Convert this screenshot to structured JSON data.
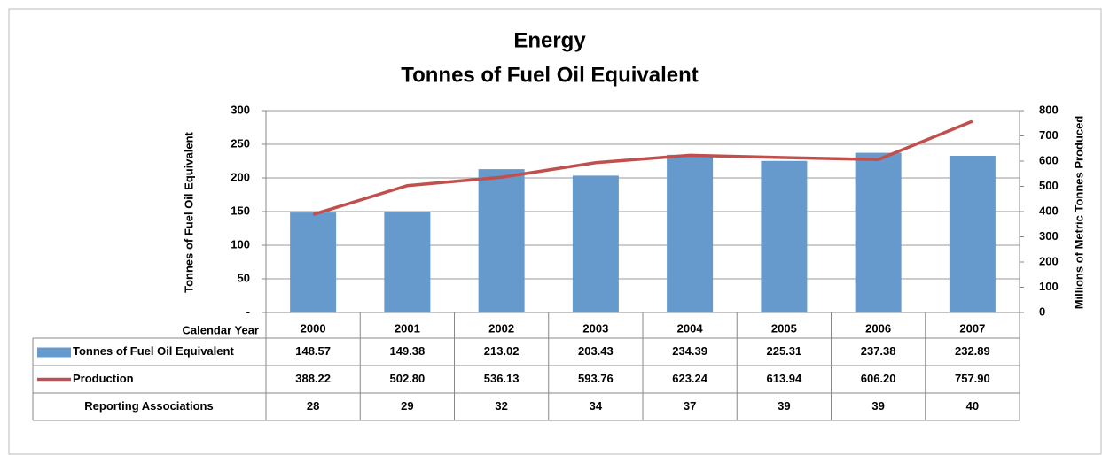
{
  "chart_data": {
    "type": "bar",
    "title": "Energy",
    "subtitle": "Tonnes of Fuel Oil Equivalent",
    "x_label": "Calendar Year",
    "y_label": "Tonnes of Fuel Oil Equivalent",
    "y2_label": "Millions of Metric Tonnes Produced",
    "categories": [
      "2000",
      "2001",
      "2002",
      "2003",
      "2004",
      "2005",
      "2006",
      "2007"
    ],
    "series": [
      {
        "name": "Tonnes of Fuel Oil Equivalent",
        "type": "bar",
        "color": "#6699cc",
        "values": [
          148.57,
          149.38,
          213.02,
          203.43,
          234.39,
          225.31,
          237.38,
          232.89
        ],
        "value_labels": [
          "148.57",
          "149.38",
          "213.02",
          "203.43",
          "234.39",
          "225.31",
          "237.38",
          "232.89"
        ]
      },
      {
        "name": "Production",
        "type": "line",
        "axis": "y2",
        "color": "#c0504d",
        "values": [
          388.22,
          502.8,
          536.13,
          593.76,
          623.24,
          613.94,
          606.2,
          757.9
        ],
        "value_labels": [
          "388.22",
          "502.80",
          "536.13",
          "593.76",
          "623.24",
          "613.94",
          "606.20",
          "757.90"
        ]
      }
    ],
    "table_rows": [
      {
        "name": "Reporting Associations",
        "values": [
          28,
          29,
          32,
          34,
          37,
          39,
          39,
          40
        ]
      }
    ],
    "ylim": [
      0,
      300
    ],
    "yticks": [
      {
        "value": 0,
        "label": "-"
      },
      50,
      100,
      150,
      200,
      250,
      300
    ],
    "y2lim": [
      0,
      800
    ],
    "y2ticks": [
      0,
      100,
      200,
      300,
      400,
      500,
      600,
      700,
      800
    ],
    "grid": true
  }
}
